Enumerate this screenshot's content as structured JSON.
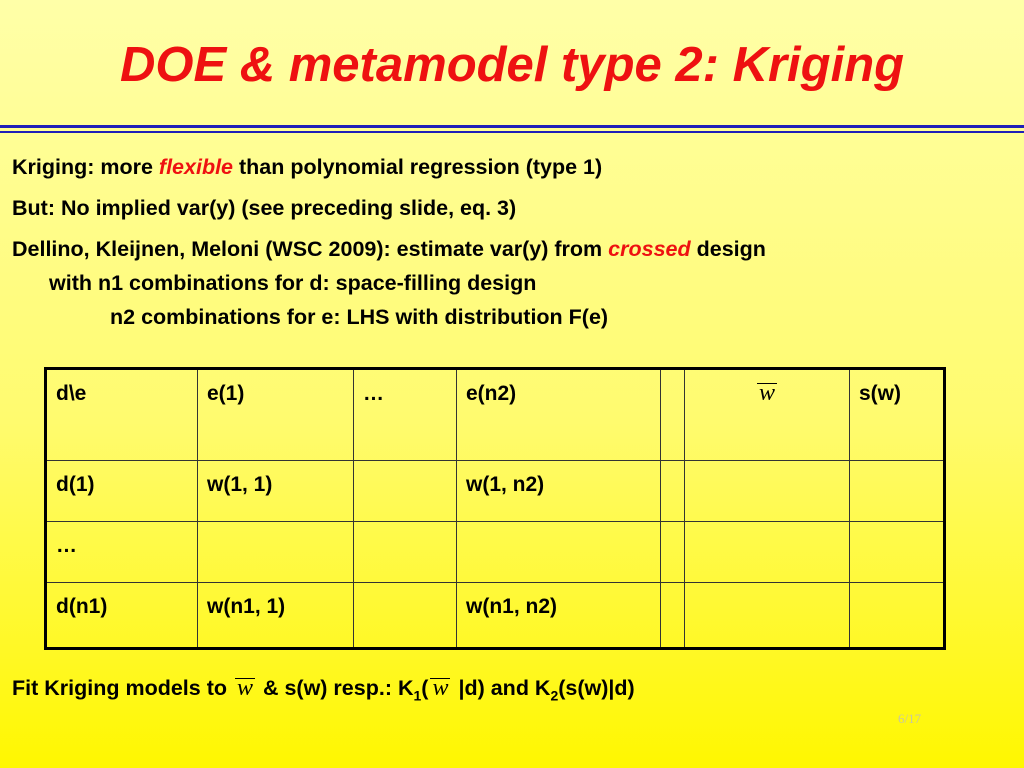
{
  "title": "DOE & metamodel type 2: Kriging",
  "lines": {
    "l1_pre": "Kriging: more ",
    "l1_em": "flexible",
    "l1_post": " than polynomial regression (type 1)",
    "l2": "But: No implied var(y) (see preceding slide, eq. 3)",
    "l3_pre": "Dellino, Kleijnen, Meloni (WSC 2009): estimate var(y) from ",
    "l3_em": "crossed",
    "l3_post": " design",
    "l4": "with n1 combinations for d: space-filling design",
    "l5": "n2 combinations for e: LHS with distribution F(e)"
  },
  "table": {
    "header": [
      "d\\e",
      "e(1)",
      "…",
      "e(n2)",
      "",
      "w",
      "s(w)"
    ],
    "rows": [
      [
        "d(1)",
        "w(1, 1)",
        "",
        "w(1, n2)",
        "",
        "",
        ""
      ],
      [
        "…",
        "",
        "",
        "",
        "",
        "",
        ""
      ],
      [
        "d(n1)",
        "w(n1, 1)",
        "",
        "w(n1, n2)",
        "",
        "",
        ""
      ]
    ]
  },
  "fit": {
    "pre": "Fit  Kriging models to ",
    "w": "w",
    "mid": " & s(w) resp.: K",
    "sub1": "1",
    "open": "(",
    "w2": "w",
    "mid2": " |d) and K",
    "sub2": "2",
    "post": "(s(w)|d)"
  },
  "page_number": "6/17"
}
